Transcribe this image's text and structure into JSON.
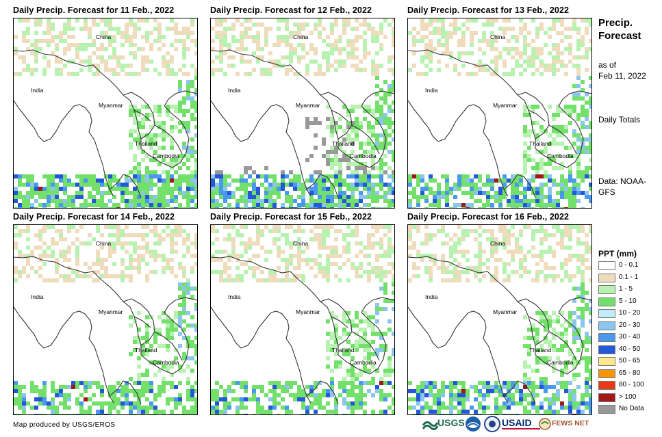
{
  "panels": [
    {
      "title": "Daily Precip. Forecast for 11 Feb., 2022",
      "seed": 11,
      "wet": 0.55,
      "heavy": 0.35,
      "nodata": 0.0
    },
    {
      "title": "Daily Precip. Forecast for 12 Feb., 2022",
      "seed": 12,
      "wet": 0.55,
      "heavy": 0.45,
      "nodata": 0.35
    },
    {
      "title": "Daily Precip. Forecast for 13 Feb., 2022",
      "seed": 13,
      "wet": 0.45,
      "heavy": 0.4,
      "nodata": 0.0
    },
    {
      "title": "Daily Precip. Forecast for 14 Feb., 2022",
      "seed": 14,
      "wet": 0.4,
      "heavy": 0.2,
      "nodata": 0.0
    },
    {
      "title": "Daily Precip. Forecast for 15 Feb., 2022",
      "seed": 15,
      "wet": 0.35,
      "heavy": 0.25,
      "nodata": 0.0
    },
    {
      "title": "Daily Precip. Forecast for 16 Feb., 2022",
      "seed": 16,
      "wet": 0.45,
      "heavy": 0.45,
      "nodata": 0.0
    }
  ],
  "places": {
    "china": "China",
    "india": "India",
    "myanmar": "Myanmar",
    "thailand": "Thailand",
    "cambodia": "Cambodia"
  },
  "side": {
    "title": "Precip. Forecast",
    "as_of": "as of",
    "date": "Feb 11, 2022",
    "totals": "Daily Totals",
    "data_source": "Data: NOAA-GFS"
  },
  "legend": {
    "title": "PPT (mm)",
    "items": [
      {
        "label": "0 - 0.1",
        "color": "#ffffff"
      },
      {
        "label": "0.1 - 1",
        "color": "#eedcbc"
      },
      {
        "label": "1 - 5",
        "color": "#b8f2b0"
      },
      {
        "label": "5 - 10",
        "color": "#72e06a"
      },
      {
        "label": "10 - 20",
        "color": "#c2ecf7"
      },
      {
        "label": "20 - 30",
        "color": "#8cc6ef"
      },
      {
        "label": "30 - 40",
        "color": "#4b99ef"
      },
      {
        "label": "40 - 50",
        "color": "#2358d8"
      },
      {
        "label": "50 - 65",
        "color": "#fde88c"
      },
      {
        "label": "65 - 80",
        "color": "#f5960a"
      },
      {
        "label": "80 - 100",
        "color": "#e83a14"
      },
      {
        "label": "> 100",
        "color": "#a01818"
      },
      {
        "label": "No Data",
        "color": "#999999"
      }
    ]
  },
  "credit": "Map produced by USGS/EROS",
  "logos": {
    "usgs": "USGS",
    "noaa": "NOAA",
    "usaid": "USAID",
    "fewsnet": "FEWS NET"
  }
}
